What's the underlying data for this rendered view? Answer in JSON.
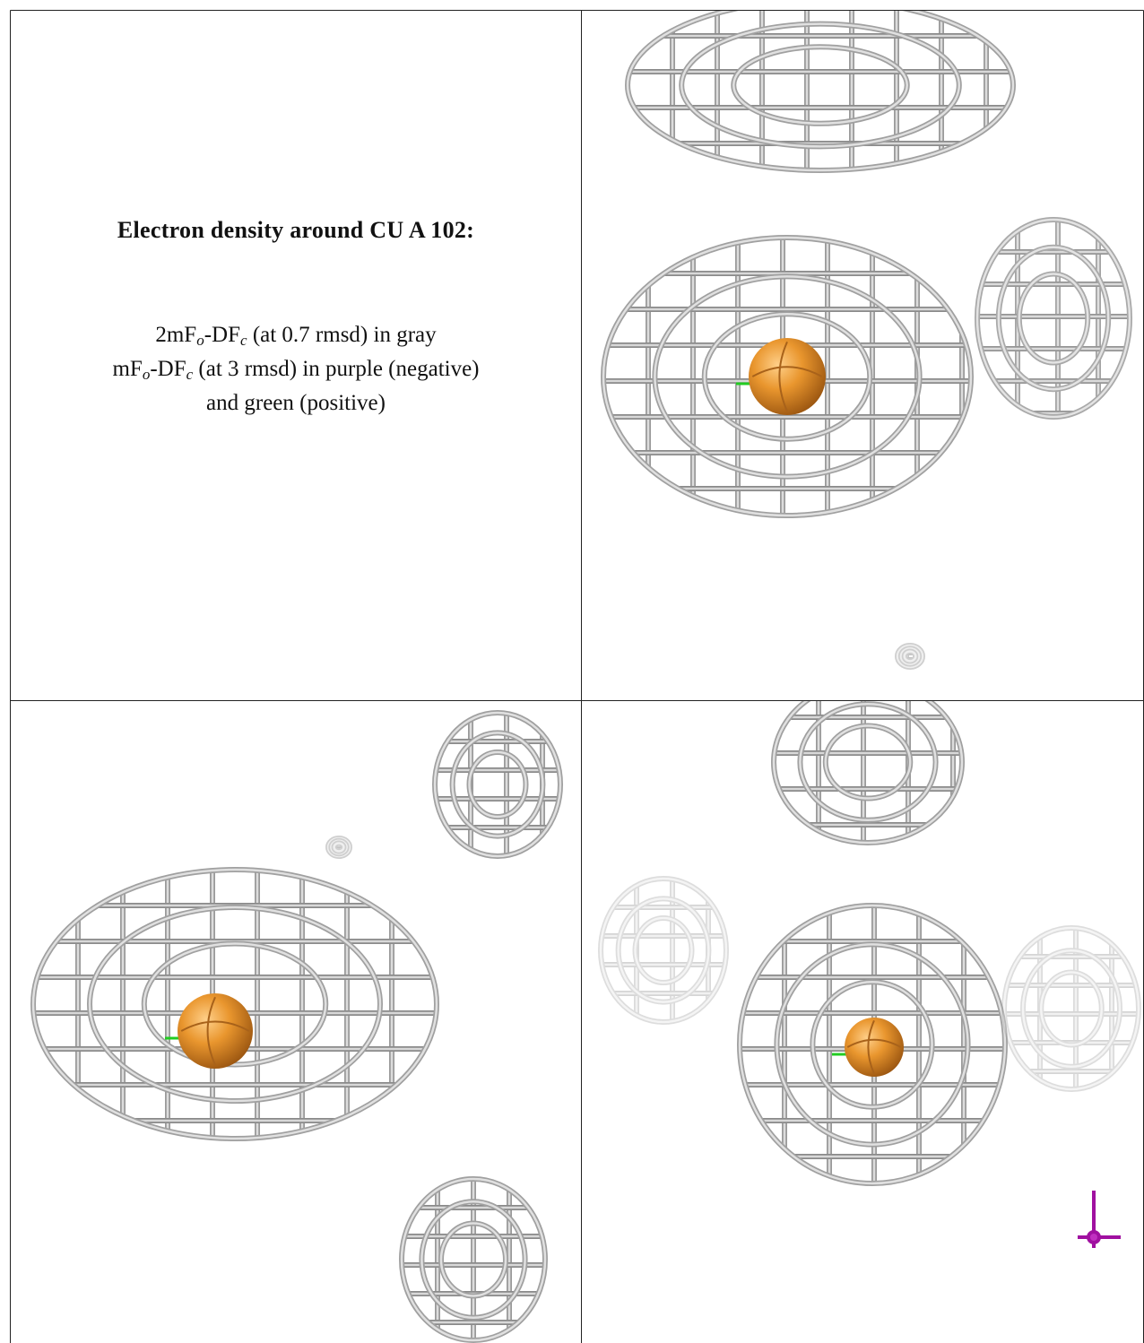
{
  "title": "Electron density around CU A 102:",
  "legend": [
    [
      "2mF",
      "o",
      "-DF",
      "c",
      " (at 0.7 rmsd) in gray"
    ],
    [
      "mF",
      "o",
      "-DF",
      "c",
      " (at 3 rmsd) in purple (negative)"
    ],
    [
      "and green (positive)"
    ]
  ]
}
